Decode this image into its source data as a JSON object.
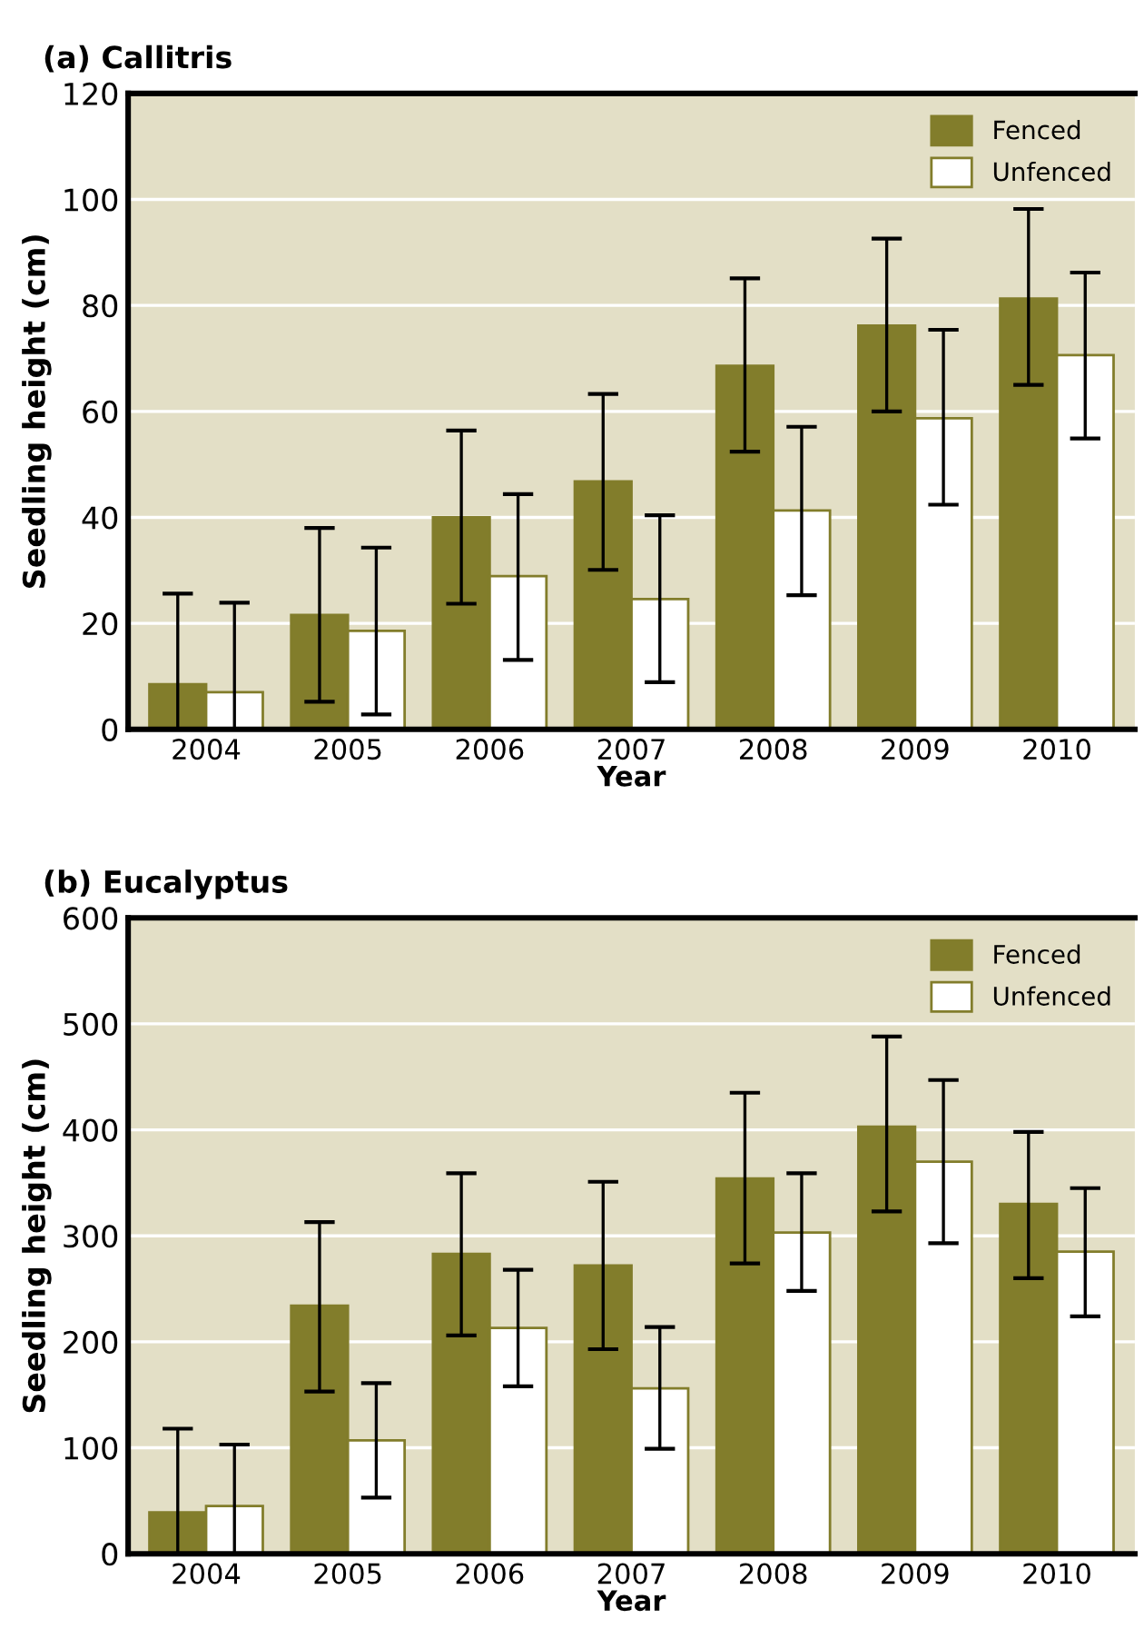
{
  "chart_data": [
    {
      "type": "bar",
      "title": "(a) Callitris",
      "xlabel": "Year",
      "ylabel": "Seedling height (cm)",
      "categories": [
        "2004",
        "2005",
        "2006",
        "2007",
        "2008",
        "2009",
        "2010"
      ],
      "series": [
        {
          "name": "Fenced",
          "color": "#827d2b",
          "values": [
            8.5,
            21.6,
            40,
            46.8,
            68.6,
            76.2,
            81.3
          ],
          "errors": [
            [
              0,
              25.6
            ],
            [
              5.2,
              38
            ],
            [
              23.7,
              56.4
            ],
            [
              30.1,
              63.3
            ],
            [
              52.4,
              85.1
            ],
            [
              60,
              92.6
            ],
            [
              65,
              98.2
            ]
          ]
        },
        {
          "name": "Unfenced",
          "color": "#ffffff",
          "values": [
            7,
            18.6,
            28.9,
            24.6,
            41.3,
            58.7,
            70.6
          ],
          "errors": [
            [
              0,
              23.9
            ],
            [
              2.8,
              34.3
            ],
            [
              13.1,
              44.4
            ],
            [
              8.9,
              40.4
            ],
            [
              25.3,
              57.1
            ],
            [
              42.4,
              75.4
            ],
            [
              54.9,
              86.2
            ]
          ]
        }
      ],
      "ylim": [
        0,
        120
      ],
      "yticks": [
        0,
        20,
        40,
        60,
        80,
        100,
        120
      ],
      "grid": "y",
      "legend": "top right"
    },
    {
      "type": "bar",
      "title": "(b) Eucalyptus",
      "xlabel": "Year",
      "ylabel": "Seedling height (cm)",
      "categories": [
        "2004",
        "2005",
        "2006",
        "2007",
        "2008",
        "2009",
        "2010"
      ],
      "series": [
        {
          "name": "Fenced",
          "color": "#827d2b",
          "values": [
            39,
            234,
            283,
            272,
            354,
            403,
            330
          ],
          "errors": [
            [
              0,
              118
            ],
            [
              153,
              313
            ],
            [
              206,
              359
            ],
            [
              193,
              351
            ],
            [
              274,
              435
            ],
            [
              323,
              488
            ],
            [
              260,
              398
            ]
          ]
        },
        {
          "name": "Unfenced",
          "color": "#ffffff",
          "values": [
            45,
            107,
            213,
            156,
            303,
            370,
            285
          ],
          "errors": [
            [
              0,
              103
            ],
            [
              53,
              161
            ],
            [
              158,
              268
            ],
            [
              99,
              214
            ],
            [
              248,
              359
            ],
            [
              293,
              447
            ],
            [
              224,
              345
            ]
          ]
        }
      ],
      "ylim": [
        0,
        600
      ],
      "yticks": [
        0,
        100,
        200,
        300,
        400,
        500,
        600
      ],
      "grid": "y",
      "legend": "top right"
    }
  ]
}
